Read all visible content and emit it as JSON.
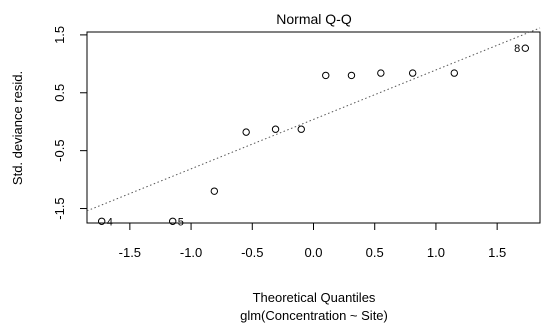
{
  "chart_data": {
    "type": "scatter",
    "title": "Normal Q-Q",
    "xlabel": "Theoretical Quantiles",
    "subtitle": "glm(Concentration ~ Site)",
    "ylabel": "Std. deviance resid.",
    "xlim": [
      -1.85,
      1.85
    ],
    "ylim": [
      -1.75,
      1.55
    ],
    "x_ticks": [
      -1.5,
      -1.0,
      -0.5,
      0.0,
      0.5,
      1.0,
      1.5
    ],
    "x_tick_labels": [
      "-1.5",
      "-1.0",
      "-0.5",
      "0.0",
      "0.5",
      "1.0",
      "1.5"
    ],
    "y_ticks": [
      -1.5,
      -0.5,
      0.5,
      1.5
    ],
    "y_tick_labels": [
      "-1.5",
      "-0.5",
      "0.5",
      "1.5"
    ],
    "grid": false,
    "reference_line": {
      "style": "dotted",
      "points": [
        [
          -1.85,
          -1.54
        ],
        [
          1.85,
          1.62
        ]
      ]
    },
    "points": [
      {
        "x": -1.73,
        "y": -1.72,
        "label": "4"
      },
      {
        "x": -1.15,
        "y": -1.72,
        "label": "5"
      },
      {
        "x": -0.81,
        "y": -1.2,
        "label": ""
      },
      {
        "x": -0.55,
        "y": -0.18,
        "label": ""
      },
      {
        "x": -0.31,
        "y": -0.13,
        "label": ""
      },
      {
        "x": -0.1,
        "y": -0.13,
        "label": ""
      },
      {
        "x": 0.1,
        "y": 0.8,
        "label": ""
      },
      {
        "x": 0.31,
        "y": 0.8,
        "label": ""
      },
      {
        "x": 0.55,
        "y": 0.84,
        "label": ""
      },
      {
        "x": 0.81,
        "y": 0.84,
        "label": ""
      },
      {
        "x": 1.15,
        "y": 0.84,
        "label": ""
      },
      {
        "x": 1.73,
        "y": 1.27,
        "label": "8"
      }
    ]
  }
}
